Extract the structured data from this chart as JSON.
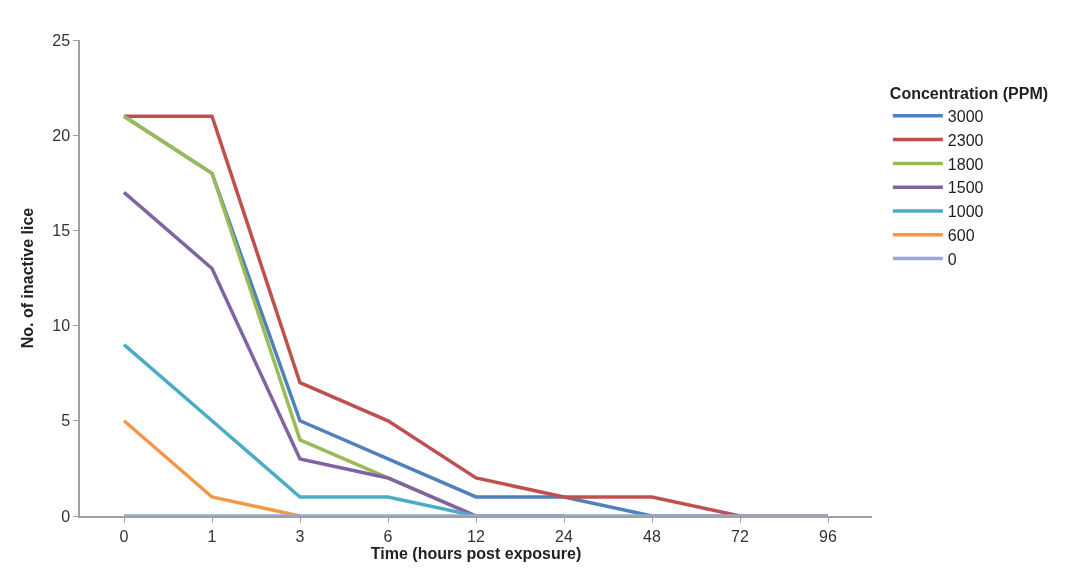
{
  "chart_data": {
    "type": "line",
    "xlabel": "Time (hours post exposure)",
    "ylabel": "No. of inactive lice",
    "legend_title": "Concentration (PPM)",
    "categories": [
      "0",
      "1",
      "3",
      "6",
      "12",
      "24",
      "48",
      "72",
      "96"
    ],
    "series": [
      {
        "name": "3000",
        "color": "#4f81bd",
        "values": [
          21,
          18,
          5,
          3,
          1,
          1,
          0,
          0,
          0
        ]
      },
      {
        "name": "2300",
        "color": "#c0504d",
        "values": [
          21,
          21,
          7,
          5,
          2,
          1,
          1,
          0,
          0
        ]
      },
      {
        "name": "1800",
        "color": "#9bbb59",
        "values": [
          21,
          18,
          4,
          2,
          0,
          0,
          null,
          null,
          null
        ]
      },
      {
        "name": "1500",
        "color": "#8064a2",
        "values": [
          17,
          13,
          3,
          2,
          0,
          0,
          null,
          null,
          null
        ]
      },
      {
        "name": "1000",
        "color": "#4bacc6",
        "values": [
          9,
          5,
          1,
          1,
          0,
          0,
          null,
          null,
          null
        ]
      },
      {
        "name": "600",
        "color": "#f79646",
        "values": [
          5,
          1,
          0,
          null,
          null,
          null,
          null,
          null,
          null
        ]
      },
      {
        "name": "0",
        "color": "#95a9d8",
        "values": [
          0,
          0,
          0,
          0,
          0,
          0,
          0,
          0,
          0
        ]
      }
    ],
    "ylim": [
      0,
      25
    ],
    "yticks": [
      0,
      5,
      10,
      15,
      20,
      25
    ],
    "legend": "right",
    "marker": "none",
    "line_style": "solid"
  }
}
